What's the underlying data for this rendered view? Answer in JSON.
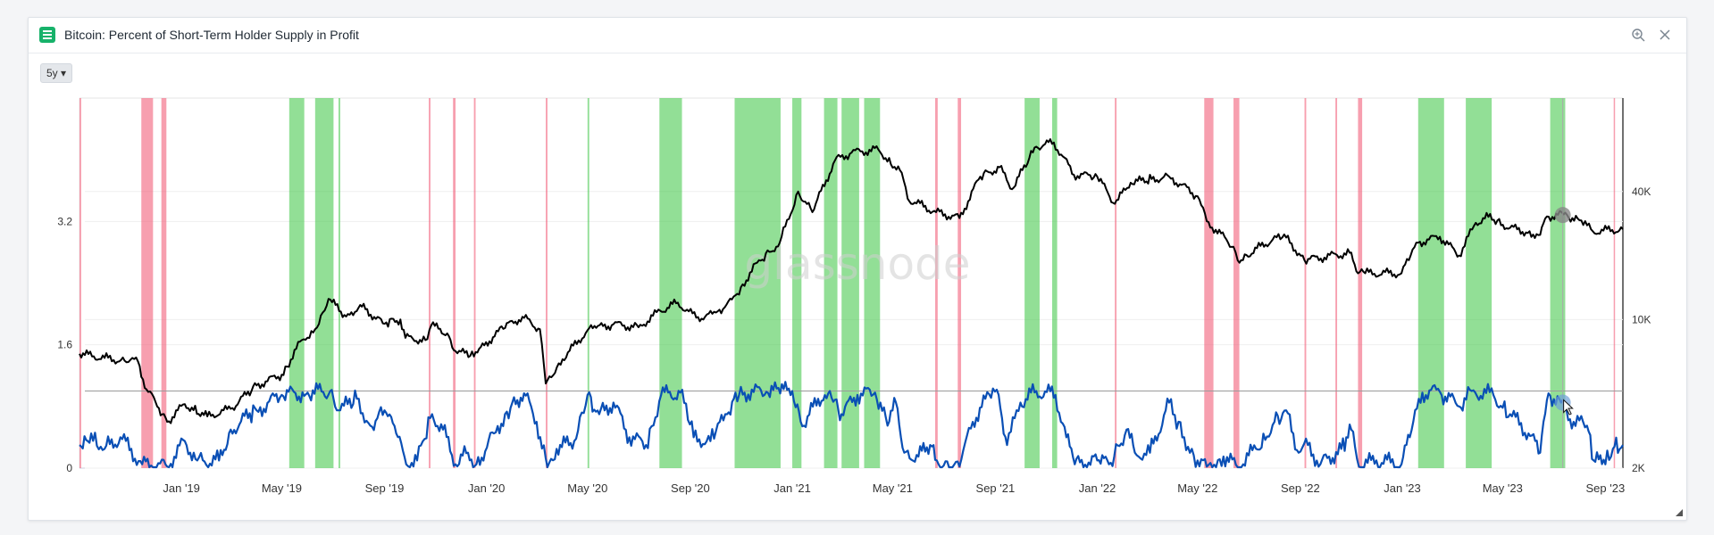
{
  "window": {
    "title": "Bitcoin: Percent of Short-Term Holder Supply in Profit",
    "range_label": "5y ▾",
    "watermark": "glassnode"
  },
  "colors": {
    "price": "#000000",
    "metric": "#0a4fb5",
    "green": "#39c43f",
    "red": "#f0506e",
    "icon": "#17b26a"
  },
  "chart_data": {
    "type": "line",
    "x_ticks": [
      "Jan '19",
      "May '19",
      "Sep '19",
      "Jan '20",
      "May '20",
      "Sep '20",
      "Jan '21",
      "May '21",
      "Sep '21",
      "Jan '22",
      "May '22",
      "Sep '22",
      "Jan '23",
      "May '23",
      "Sep '23"
    ],
    "x_range": [
      "2018-09-01",
      "2023-09-22"
    ],
    "y_left": {
      "ticks": [
        "0",
        "1.6",
        "3.2"
      ],
      "range": [
        0,
        4.8
      ],
      "threshold": 1
    },
    "y_right": {
      "ticks": [
        "2K",
        "10K",
        "40K"
      ],
      "scale": "log",
      "range": [
        2000,
        110000
      ]
    },
    "series": [
      {
        "axis": "right",
        "points": [
          [
            "2018-09-01",
            6900
          ],
          [
            "2018-10-01",
            6600
          ],
          [
            "2018-10-25",
            6400
          ],
          [
            "2018-11-10",
            6350
          ],
          [
            "2018-11-20",
            4700
          ],
          [
            "2018-12-01",
            4100
          ],
          [
            "2018-12-15",
            3300
          ],
          [
            "2019-01-05",
            4000
          ],
          [
            "2019-02-01",
            3500
          ],
          [
            "2019-03-01",
            3800
          ],
          [
            "2019-04-01",
            4900
          ],
          [
            "2019-05-01",
            5500
          ],
          [
            "2019-05-25",
            8000
          ],
          [
            "2019-06-10",
            9000
          ],
          [
            "2019-06-26",
            12500
          ],
          [
            "2019-07-15",
            10500
          ],
          [
            "2019-08-05",
            11500
          ],
          [
            "2019-08-30",
            9600
          ],
          [
            "2019-09-20",
            10000
          ],
          [
            "2019-09-26",
            8200
          ],
          [
            "2019-10-20",
            8000
          ],
          [
            "2019-10-27",
            9400
          ],
          [
            "2019-11-15",
            8600
          ],
          [
            "2019-11-25",
            7100
          ],
          [
            "2019-12-17",
            6700
          ],
          [
            "2020-01-15",
            8800
          ],
          [
            "2020-02-13",
            10300
          ],
          [
            "2020-03-05",
            9000
          ],
          [
            "2020-03-12",
            5000
          ],
          [
            "2020-04-01",
            6500
          ],
          [
            "2020-05-01",
            8900
          ],
          [
            "2020-06-01",
            9500
          ],
          [
            "2020-07-01",
            9200
          ],
          [
            "2020-07-27",
            11000
          ],
          [
            "2020-08-17",
            12000
          ],
          [
            "2020-09-08",
            10200
          ],
          [
            "2020-10-08",
            10700
          ],
          [
            "2020-10-25",
            13000
          ],
          [
            "2020-11-20",
            18500
          ],
          [
            "2020-12-17",
            23000
          ],
          [
            "2021-01-08",
            40000
          ],
          [
            "2021-01-25",
            32000
          ],
          [
            "2021-02-21",
            56000
          ],
          [
            "2021-03-13",
            61000
          ],
          [
            "2021-04-14",
            63000
          ],
          [
            "2021-05-12",
            49000
          ],
          [
            "2021-05-19",
            37000
          ],
          [
            "2021-06-22",
            32000
          ],
          [
            "2021-07-20",
            30000
          ],
          [
            "2021-08-14",
            47000
          ],
          [
            "2021-09-06",
            52000
          ],
          [
            "2021-09-21",
            41000
          ],
          [
            "2021-10-20",
            65000
          ],
          [
            "2021-11-10",
            68000
          ],
          [
            "2021-12-04",
            48000
          ],
          [
            "2022-01-01",
            47000
          ],
          [
            "2022-01-22",
            35000
          ],
          [
            "2022-02-10",
            44000
          ],
          [
            "2022-03-28",
            47000
          ],
          [
            "2022-05-01",
            38000
          ],
          [
            "2022-05-12",
            29000
          ],
          [
            "2022-06-13",
            22000
          ],
          [
            "2022-06-18",
            19000
          ],
          [
            "2022-07-30",
            23800
          ],
          [
            "2022-08-15",
            24300
          ],
          [
            "2022-09-06",
            19000
          ],
          [
            "2022-10-30",
            20600
          ],
          [
            "2022-11-09",
            16500
          ],
          [
            "2022-12-31",
            16500
          ],
          [
            "2023-01-20",
            23000
          ],
          [
            "2023-02-15",
            24500
          ],
          [
            "2023-03-10",
            20000
          ],
          [
            "2023-03-30",
            28500
          ],
          [
            "2023-04-14",
            30400
          ],
          [
            "2023-05-10",
            27000
          ],
          [
            "2023-06-15",
            25000
          ],
          [
            "2023-06-23",
            30500
          ],
          [
            "2023-07-13",
            31200
          ],
          [
            "2023-08-01",
            29300
          ],
          [
            "2023-08-17",
            26000
          ],
          [
            "2023-09-22",
            26600
          ]
        ]
      },
      {
        "axis": "left",
        "points": [
          [
            "2018-09-01",
            0.3
          ],
          [
            "2018-09-15",
            0.45
          ],
          [
            "2018-10-01",
            0.25
          ],
          [
            "2018-10-20",
            0.4
          ],
          [
            "2018-11-15",
            0.05
          ],
          [
            "2018-12-15",
            0.02
          ],
          [
            "2019-01-05",
            0.35
          ],
          [
            "2019-01-20",
            0.1
          ],
          [
            "2019-02-15",
            0.1
          ],
          [
            "2019-03-01",
            0.5
          ],
          [
            "2019-04-01",
            0.75
          ],
          [
            "2019-05-01",
            0.95
          ],
          [
            "2019-06-01",
            0.98
          ],
          [
            "2019-06-28",
            1.0
          ],
          [
            "2019-07-10",
            0.75
          ],
          [
            "2019-07-30",
            0.9
          ],
          [
            "2019-08-15",
            0.55
          ],
          [
            "2019-09-01",
            0.75
          ],
          [
            "2019-09-15",
            0.45
          ],
          [
            "2019-09-27",
            0.05
          ],
          [
            "2019-10-10",
            0.1
          ],
          [
            "2019-10-28",
            0.7
          ],
          [
            "2019-11-10",
            0.5
          ],
          [
            "2019-11-25",
            0.05
          ],
          [
            "2019-12-10",
            0.2
          ],
          [
            "2019-12-20",
            0.05
          ],
          [
            "2020-01-10",
            0.45
          ],
          [
            "2020-02-01",
            0.85
          ],
          [
            "2020-02-15",
            0.97
          ],
          [
            "2020-03-01",
            0.6
          ],
          [
            "2020-03-14",
            0.0
          ],
          [
            "2020-03-25",
            0.25
          ],
          [
            "2020-04-15",
            0.35
          ],
          [
            "2020-05-01",
            0.95
          ],
          [
            "2020-05-15",
            0.7
          ],
          [
            "2020-06-01",
            0.85
          ],
          [
            "2020-06-20",
            0.4
          ],
          [
            "2020-07-10",
            0.3
          ],
          [
            "2020-07-28",
            0.95
          ],
          [
            "2020-08-20",
            0.98
          ],
          [
            "2020-09-05",
            0.4
          ],
          [
            "2020-09-25",
            0.35
          ],
          [
            "2020-10-15",
            0.7
          ],
          [
            "2020-10-25",
            0.98
          ],
          [
            "2020-12-01",
            0.99
          ],
          [
            "2021-01-01",
            1.0
          ],
          [
            "2021-01-15",
            0.55
          ],
          [
            "2021-02-01",
            0.9
          ],
          [
            "2021-02-15",
            1.0
          ],
          [
            "2021-03-01",
            0.7
          ],
          [
            "2021-03-20",
            0.95
          ],
          [
            "2021-04-10",
            0.98
          ],
          [
            "2021-04-25",
            0.55
          ],
          [
            "2021-05-05",
            0.85
          ],
          [
            "2021-05-15",
            0.2
          ],
          [
            "2021-06-01",
            0.15
          ],
          [
            "2021-06-15",
            0.3
          ],
          [
            "2021-06-25",
            0.05
          ],
          [
            "2021-07-20",
            0.02
          ],
          [
            "2021-08-05",
            0.6
          ],
          [
            "2021-08-20",
            0.9
          ],
          [
            "2021-09-05",
            0.95
          ],
          [
            "2021-09-15",
            0.3
          ],
          [
            "2021-10-01",
            0.85
          ],
          [
            "2021-10-20",
            1.0
          ],
          [
            "2021-11-12",
            0.95
          ],
          [
            "2021-11-25",
            0.4
          ],
          [
            "2021-12-05",
            0.05
          ],
          [
            "2022-01-01",
            0.1
          ],
          [
            "2022-01-15",
            0.05
          ],
          [
            "2022-02-05",
            0.5
          ],
          [
            "2022-02-15",
            0.2
          ],
          [
            "2022-03-05",
            0.2
          ],
          [
            "2022-03-28",
            0.85
          ],
          [
            "2022-04-15",
            0.4
          ],
          [
            "2022-05-01",
            0.1
          ],
          [
            "2022-05-12",
            0.02
          ],
          [
            "2022-06-01",
            0.15
          ],
          [
            "2022-06-18",
            0.01
          ],
          [
            "2022-07-10",
            0.25
          ],
          [
            "2022-08-01",
            0.6
          ],
          [
            "2022-08-15",
            0.75
          ],
          [
            "2022-08-30",
            0.2
          ],
          [
            "2022-09-10",
            0.3
          ],
          [
            "2022-09-25",
            0.05
          ],
          [
            "2022-10-20",
            0.25
          ],
          [
            "2022-11-01",
            0.5
          ],
          [
            "2022-11-10",
            0.02
          ],
          [
            "2022-12-01",
            0.1
          ],
          [
            "2022-12-31",
            0.05
          ],
          [
            "2023-01-10",
            0.4
          ],
          [
            "2023-01-25",
            0.98
          ],
          [
            "2023-02-15",
            0.99
          ],
          [
            "2023-03-10",
            0.8
          ],
          [
            "2023-03-25",
            1.0
          ],
          [
            "2023-04-20",
            0.95
          ],
          [
            "2023-05-10",
            0.7
          ],
          [
            "2023-06-01",
            0.45
          ],
          [
            "2023-06-15",
            0.2
          ],
          [
            "2023-06-25",
            0.97
          ],
          [
            "2023-07-10",
            0.85
          ],
          [
            "2023-07-25",
            0.6
          ],
          [
            "2023-08-10",
            0.55
          ],
          [
            "2023-08-18",
            0.1
          ],
          [
            "2023-09-01",
            0.05
          ],
          [
            "2023-09-10",
            0.25
          ],
          [
            "2023-09-22",
            0.3
          ]
        ]
      }
    ],
    "green_bands": [
      [
        "2019-05-10",
        "2019-05-28"
      ],
      [
        "2019-06-10",
        "2019-07-02"
      ],
      [
        "2019-07-08",
        "2019-07-10"
      ],
      [
        "2020-05-01",
        "2020-05-03"
      ],
      [
        "2020-07-26",
        "2020-08-22"
      ],
      [
        "2020-10-24",
        "2020-12-18"
      ],
      [
        "2021-01-01",
        "2021-01-12"
      ],
      [
        "2021-02-08",
        "2021-02-24"
      ],
      [
        "2021-03-01",
        "2021-03-22"
      ],
      [
        "2021-03-28",
        "2021-04-16"
      ],
      [
        "2021-10-06",
        "2021-10-24"
      ],
      [
        "2021-11-08",
        "2021-11-14"
      ],
      [
        "2023-01-20",
        "2023-02-20"
      ],
      [
        "2023-03-18",
        "2023-04-18"
      ],
      [
        "2023-06-27",
        "2023-07-15"
      ]
    ],
    "red_bands": [
      [
        "2018-09-01",
        "2018-09-03"
      ],
      [
        "2018-11-14",
        "2018-11-28"
      ],
      [
        "2018-12-08",
        "2018-12-14"
      ],
      [
        "2019-10-24",
        "2019-10-26"
      ],
      [
        "2019-11-22",
        "2019-11-25"
      ],
      [
        "2019-12-17",
        "2019-12-19"
      ],
      [
        "2020-03-12",
        "2020-03-14"
      ],
      [
        "2021-06-21",
        "2021-06-24"
      ],
      [
        "2021-07-18",
        "2021-07-22"
      ],
      [
        "2022-01-22",
        "2022-01-24"
      ],
      [
        "2022-05-09",
        "2022-05-20"
      ],
      [
        "2022-06-13",
        "2022-06-20"
      ],
      [
        "2022-09-06",
        "2022-09-08"
      ],
      [
        "2022-10-13",
        "2022-10-15"
      ],
      [
        "2022-11-09",
        "2022-11-14"
      ],
      [
        "2023-09-11",
        "2023-09-12"
      ]
    ],
    "cursor_date": "2023-07-12"
  }
}
